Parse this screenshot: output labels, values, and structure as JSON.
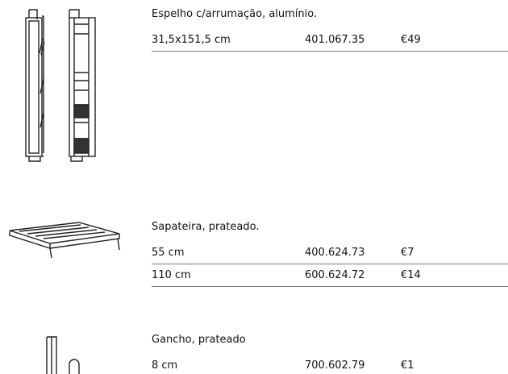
{
  "products": [
    {
      "title": "Espelho c/arrumação, alumínio.",
      "rows": [
        [
          "31,5x151,5 cm",
          "401.067.35",
          "€49"
        ]
      ]
    },
    {
      "title": "Sapateira, prateado.",
      "rows": [
        [
          "55 cm",
          "400.624.73",
          "€7"
        ],
        [
          "110 cm",
          "600.624.72",
          "€14"
        ]
      ]
    },
    {
      "title": "Gancho, prateado",
      "rows": [
        [
          "8 cm",
          "700.602.79",
          "€1"
        ]
      ]
    }
  ]
}
